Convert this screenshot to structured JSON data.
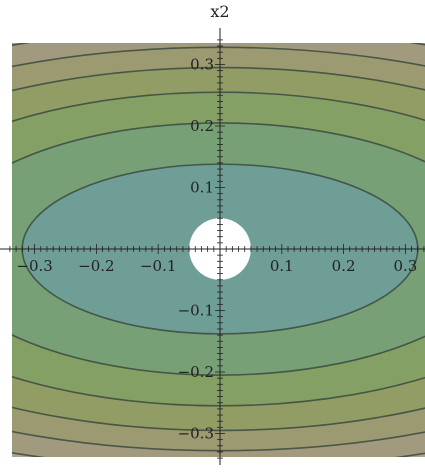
{
  "chart_data": {
    "type": "contour",
    "title": "",
    "xlabel": "",
    "ylabel": "x2",
    "xlim": [
      -0.34,
      0.34
    ],
    "ylim": [
      -0.34,
      0.34
    ],
    "x_ticks": [
      -0.3,
      -0.2,
      -0.1,
      0.1,
      0.2,
      0.3
    ],
    "x_tick_labels": [
      "−0.3",
      "−0.2",
      "−0.1",
      "0.1",
      "0.2",
      "0.3"
    ],
    "y_ticks": [
      0.3,
      0.2,
      0.1,
      -0.1,
      -0.2,
      -0.3
    ],
    "y_tick_labels": [
      "0.3",
      "0.2",
      "0.1",
      "−0.1",
      "−0.2",
      "−0.3"
    ],
    "contour_levels": [
      {
        "x_semi": 0.32,
        "y_semi": 0.138
      },
      {
        "x_semi": 0.46,
        "y_semi": 0.205
      },
      {
        "x_semi": 0.58,
        "y_semi": 0.255
      },
      {
        "x_semi": 0.69,
        "y_semi": 0.295
      },
      {
        "x_semi": 0.79,
        "y_semi": 0.328
      },
      {
        "x_semi": 0.89,
        "y_semi": 0.358
      }
    ],
    "excluded_disk_radius": 0.05,
    "fill_colors": [
      "#6f9e96",
      "#77a077",
      "#85a065",
      "#929d66",
      "#9c9a70",
      "#a29a7e",
      "#a8a28e"
    ],
    "line_color": "#3b4a3f",
    "grid": false
  }
}
